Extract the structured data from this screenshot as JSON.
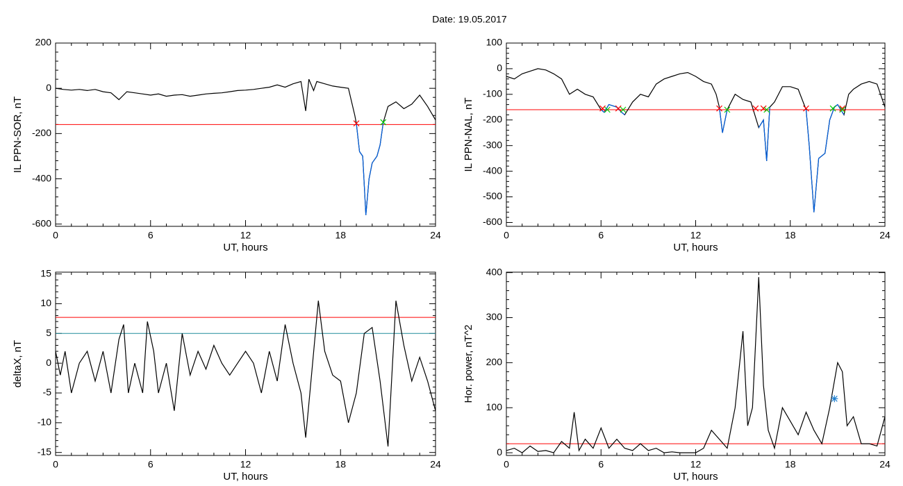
{
  "title": "Date:  19.05.2017",
  "chart_data": [
    {
      "type": "line",
      "ylabel": "IL PPN-SOR, nT",
      "xlabel": "UT, hours",
      "xlim": [
        0,
        24
      ],
      "xticks": [
        0,
        6,
        12,
        18,
        24
      ],
      "ylim": [
        -610,
        200
      ],
      "yticks": [
        -600,
        -400,
        -200,
        0,
        200
      ],
      "x": [
        0,
        0.5,
        1,
        1.5,
        2,
        2.5,
        3,
        3.5,
        4,
        4.5,
        5,
        5.5,
        6,
        6.5,
        7,
        7.5,
        8,
        8.5,
        9,
        9.5,
        10,
        10.5,
        11,
        11.5,
        12,
        12.5,
        13,
        13.5,
        14,
        14.5,
        15,
        15.5,
        15.8,
        16,
        16.3,
        16.5,
        17,
        17.5,
        18,
        18.5,
        18.9,
        19,
        19.2,
        19.4,
        19.6,
        19.8,
        20,
        20.3,
        20.5,
        20.7,
        21,
        21.5,
        22,
        22.5,
        23,
        23.5,
        24
      ],
      "series": [
        {
          "color": "#000000",
          "values": [
            0,
            -5,
            -8,
            -5,
            -10,
            -5,
            -15,
            -20,
            -50,
            -15,
            -20,
            -25,
            -30,
            -25,
            -35,
            -30,
            -28,
            -35,
            -30,
            -25,
            -22,
            -20,
            -15,
            -10,
            -8,
            -5,
            0,
            5,
            15,
            5,
            20,
            30,
            -100,
            40,
            -10,
            30,
            20,
            10,
            5,
            0,
            -120,
            -155,
            -280,
            -300,
            -560,
            -400,
            -330,
            -300,
            -250,
            -150,
            -80,
            -60,
            -90,
            -70,
            -30,
            -80,
            -140
          ]
        },
        {
          "color": "#0060e0",
          "values": [
            null,
            null,
            null,
            null,
            null,
            null,
            null,
            null,
            null,
            null,
            null,
            null,
            null,
            null,
            null,
            null,
            null,
            null,
            null,
            null,
            null,
            null,
            null,
            null,
            null,
            null,
            null,
            null,
            null,
            null,
            null,
            null,
            null,
            null,
            null,
            null,
            null,
            null,
            null,
            null,
            null,
            -155,
            -280,
            -300,
            -560,
            -400,
            -330,
            -300,
            -250,
            -150,
            null,
            null,
            null,
            null,
            null,
            null,
            null
          ]
        },
        {
          "type": "scatter",
          "marker": "x",
          "color": "#ff0000",
          "x": [
            19
          ],
          "values": [
            -155
          ]
        },
        {
          "type": "scatter",
          "marker": "x",
          "color": "#00cc00",
          "x": [
            20.7
          ],
          "values": [
            -150
          ]
        }
      ],
      "hlines": [
        {
          "value": -160,
          "color": "#ff0000"
        }
      ]
    },
    {
      "type": "line",
      "ylabel": "IL PPN-NAL, nT",
      "xlabel": "UT, hours",
      "xlim": [
        0,
        24
      ],
      "xticks": [
        0,
        6,
        12,
        18,
        24
      ],
      "ylim": [
        -615,
        100
      ],
      "yticks": [
        -600,
        -500,
        -400,
        -300,
        -200,
        -100,
        0,
        100
      ],
      "x": [
        0,
        0.5,
        1,
        1.5,
        2,
        2.5,
        3,
        3.5,
        4,
        4.5,
        5,
        5.5,
        6,
        6.2,
        6.5,
        7,
        7.3,
        7.5,
        8,
        8.5,
        9,
        9.5,
        10,
        10.5,
        11,
        11.5,
        12,
        12.5,
        13,
        13.3,
        13.5,
        13.7,
        14,
        14.5,
        15,
        15.5,
        16,
        16.3,
        16.5,
        16.7,
        17,
        17.5,
        18,
        18.5,
        19,
        19.2,
        19.5,
        19.8,
        20.2,
        20.5,
        20.8,
        21,
        21.4,
        21.7,
        22,
        22.5,
        23,
        23.5,
        24
      ],
      "series": [
        {
          "color": "#000000",
          "values": [
            -30,
            -40,
            -20,
            -10,
            0,
            -5,
            -20,
            -40,
            -100,
            -80,
            -100,
            -110,
            -160,
            -170,
            -140,
            -150,
            -170,
            -180,
            -130,
            -100,
            -110,
            -60,
            -40,
            -30,
            -20,
            -15,
            -30,
            -50,
            -60,
            -100,
            -150,
            -250,
            -160,
            -100,
            -120,
            -130,
            -230,
            -200,
            -360,
            -150,
            -130,
            -70,
            -70,
            -80,
            -160,
            -300,
            -560,
            -350,
            -330,
            -200,
            -150,
            -140,
            -180,
            -100,
            -80,
            -60,
            -50,
            -60,
            -150
          ]
        },
        {
          "color": "#0060e0",
          "values": [
            null,
            null,
            null,
            null,
            null,
            null,
            null,
            null,
            null,
            null,
            null,
            null,
            -160,
            -170,
            -140,
            -150,
            -170,
            -180,
            null,
            null,
            null,
            null,
            null,
            null,
            null,
            null,
            null,
            null,
            null,
            null,
            -150,
            -250,
            -160,
            null,
            null,
            null,
            -230,
            -200,
            -360,
            -150,
            null,
            null,
            null,
            null,
            -160,
            -300,
            -560,
            -350,
            -330,
            -200,
            -150,
            -140,
            -180,
            null,
            null,
            null,
            null,
            null,
            null
          ]
        },
        {
          "type": "scatter",
          "marker": "x",
          "color": "#ff0000",
          "x": [
            6.1,
            7.1,
            13.5,
            15.8,
            16.3,
            19.0,
            21.3
          ],
          "values": [
            -155,
            -155,
            -155,
            -155,
            -155,
            -155,
            -155
          ]
        },
        {
          "type": "scatter",
          "marker": "x",
          "color": "#00cc00",
          "x": [
            6.4,
            7.4,
            14.0,
            16.5,
            20.7,
            21.3
          ],
          "values": [
            -160,
            -160,
            -160,
            -160,
            -155,
            -160
          ]
        }
      ],
      "hlines": [
        {
          "value": -160,
          "color": "#ff0000"
        }
      ]
    },
    {
      "type": "line",
      "ylabel": "deltaX, nT",
      "xlabel": "UT, hours",
      "xlim": [
        0,
        24
      ],
      "xticks": [
        0,
        6,
        12,
        18,
        24
      ],
      "ylim": [
        -15.5,
        15.3
      ],
      "yticks": [
        -15,
        -10,
        -5,
        0,
        5,
        10,
        15
      ],
      "x": [
        0,
        0.3,
        0.6,
        1,
        1.5,
        2,
        2.5,
        3,
        3.5,
        4,
        4.3,
        4.6,
        5,
        5.5,
        5.8,
        6.2,
        6.5,
        7,
        7.5,
        8,
        8.5,
        9,
        9.5,
        10,
        10.5,
        11,
        11.5,
        12,
        12.5,
        13,
        13.5,
        14,
        14.5,
        15,
        15.5,
        15.8,
        16.1,
        16.6,
        17,
        17.5,
        18,
        18.5,
        19,
        19.5,
        20,
        20.5,
        21,
        21.5,
        22,
        22.5,
        23,
        23.5,
        24
      ],
      "series": [
        {
          "color": "#000000",
          "values": [
            2,
            -2,
            2,
            -5,
            0,
            2,
            -3,
            2,
            -5,
            4,
            6.5,
            -5,
            0,
            -5,
            7,
            2,
            -5,
            0,
            -8,
            5,
            -2,
            2,
            -1,
            3,
            0,
            -2,
            0,
            2,
            0,
            -5,
            2,
            -3,
            6.5,
            0,
            -5,
            -12.5,
            -4,
            10.5,
            2,
            -2,
            -3,
            -10,
            -5,
            5,
            6,
            -3,
            -14,
            10.5,
            3,
            -3,
            1,
            -3,
            -8
          ]
        }
      ],
      "hlines": [
        {
          "value": 7.7,
          "color": "#ff0000"
        },
        {
          "value": 5,
          "color": "#208c9c"
        }
      ]
    },
    {
      "type": "line",
      "ylabel": "Hor. power, nT^2",
      "xlabel": "UT, hours",
      "xlim": [
        0,
        24
      ],
      "xticks": [
        0,
        6,
        12,
        18,
        24
      ],
      "ylim": [
        -6,
        401
      ],
      "yticks": [
        0,
        100,
        200,
        300,
        400
      ],
      "x": [
        0,
        0.5,
        1,
        1.5,
        2,
        2.5,
        3,
        3.5,
        4,
        4.3,
        4.6,
        5,
        5.5,
        6,
        6.5,
        7,
        7.5,
        8,
        8.5,
        9,
        9.5,
        10,
        10.5,
        11,
        11.5,
        12,
        12.5,
        13,
        13.5,
        14,
        14.5,
        15,
        15.3,
        15.6,
        16,
        16.3,
        16.6,
        17,
        17.5,
        18,
        18.5,
        19,
        19.5,
        20,
        20.5,
        21,
        21.3,
        21.6,
        22,
        22.5,
        23,
        23.5,
        24
      ],
      "series": [
        {
          "color": "#000000",
          "values": [
            5,
            10,
            0,
            15,
            3,
            5,
            0,
            25,
            10,
            90,
            5,
            30,
            10,
            55,
            10,
            30,
            10,
            5,
            20,
            5,
            10,
            0,
            2,
            0,
            0,
            0,
            10,
            50,
            30,
            10,
            100,
            270,
            60,
            100,
            390,
            150,
            50,
            10,
            100,
            70,
            40,
            90,
            50,
            20,
            100,
            200,
            180,
            60,
            80,
            20,
            20,
            15,
            80
          ]
        },
        {
          "type": "scatter",
          "marker": "star",
          "color": "#2080d0",
          "x": [
            20.8
          ],
          "values": [
            120
          ]
        }
      ],
      "hlines": [
        {
          "value": 20,
          "color": "#ff0000"
        }
      ]
    }
  ]
}
